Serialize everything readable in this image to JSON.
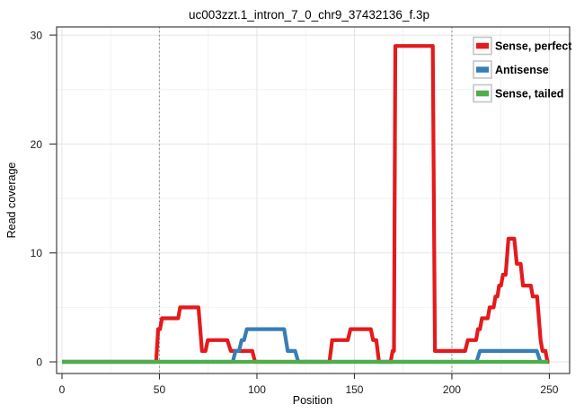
{
  "chart_data": {
    "type": "line",
    "title": "uc003zzt.1_intron_7_0_chr9_37432136_f.3p",
    "xlabel": "Position",
    "ylabel": "Read coverage",
    "xlim": [
      -2.76,
      260.4
    ],
    "ylim": [
      -1.07,
      30.75
    ],
    "xticks": [
      0,
      50,
      100,
      150,
      200,
      250
    ],
    "yticks": [
      0,
      10,
      20,
      30
    ],
    "xminor": [
      25,
      75,
      125,
      175,
      225
    ],
    "yminor": [
      5,
      15,
      25
    ],
    "grid": "on",
    "legend_position": "top-right-inside",
    "annotations": {
      "vlines": [
        50,
        200
      ],
      "vline_style": "dotted",
      "vline_color": "#8a8a8a"
    },
    "series": [
      {
        "name": "Sense, perfect",
        "color": "#E41A1C",
        "points": [
          [
            0,
            0
          ],
          [
            48.3,
            0
          ],
          [
            49.3,
            3
          ],
          [
            50.3,
            3
          ],
          [
            51.3,
            4
          ],
          [
            59.6,
            4
          ],
          [
            60.6,
            5
          ],
          [
            70,
            5
          ],
          [
            71.8,
            1
          ],
          [
            73.6,
            1
          ],
          [
            74.8,
            2
          ],
          [
            84.8,
            2
          ],
          [
            86.6,
            1
          ],
          [
            97.6,
            1
          ],
          [
            99,
            0
          ],
          [
            137.2,
            0
          ],
          [
            138.6,
            2
          ],
          [
            146.6,
            2
          ],
          [
            148,
            3
          ],
          [
            158.4,
            3
          ],
          [
            159.6,
            2
          ],
          [
            161.2,
            2
          ],
          [
            162.6,
            0
          ],
          [
            168.6,
            0
          ],
          [
            169.6,
            1
          ],
          [
            170.3,
            1
          ],
          [
            171,
            29
          ],
          [
            190.2,
            29
          ],
          [
            191.3,
            1
          ],
          [
            206.8,
            1
          ],
          [
            208.2,
            2
          ],
          [
            212.4,
            2
          ],
          [
            213.4,
            3
          ],
          [
            214.4,
            3
          ],
          [
            215.4,
            4
          ],
          [
            218.4,
            4
          ],
          [
            219.4,
            5
          ],
          [
            221.4,
            5
          ],
          [
            222.4,
            6
          ],
          [
            223.4,
            6
          ],
          [
            224.2,
            7
          ],
          [
            225.2,
            7
          ],
          [
            226.2,
            8
          ],
          [
            227.6,
            8
          ],
          [
            229,
            11.3
          ],
          [
            232,
            11.3
          ],
          [
            233.3,
            9
          ],
          [
            235.3,
            9
          ],
          [
            236.5,
            7
          ],
          [
            240.5,
            7
          ],
          [
            241.5,
            6
          ],
          [
            243.7,
            6
          ],
          [
            245.5,
            2
          ],
          [
            246.5,
            1
          ],
          [
            248,
            1
          ],
          [
            249,
            0
          ],
          [
            250,
            0
          ]
        ]
      },
      {
        "name": "Antisense",
        "color": "#377EB8",
        "points": [
          [
            0,
            0
          ],
          [
            87.6,
            0
          ],
          [
            89,
            1
          ],
          [
            90.8,
            1
          ],
          [
            92.2,
            2
          ],
          [
            93.4,
            2
          ],
          [
            94.8,
            3
          ],
          [
            114,
            3
          ],
          [
            115.8,
            1
          ],
          [
            119.6,
            1
          ],
          [
            121.2,
            0
          ],
          [
            212.6,
            0
          ],
          [
            214.4,
            1
          ],
          [
            243.6,
            1
          ],
          [
            245.4,
            0
          ],
          [
            249.5,
            0
          ]
        ]
      },
      {
        "name": "Sense, tailed",
        "color": "#4DAF4A",
        "points": [
          [
            0,
            0
          ],
          [
            249.5,
            0
          ]
        ]
      }
    ],
    "style": {
      "grid_major_color": "#e4e4e4",
      "grid_minor_color": "#f2f2f2",
      "panel_border_color": "#404040",
      "tick_color": "#333333",
      "line_width": 4.2
    }
  }
}
